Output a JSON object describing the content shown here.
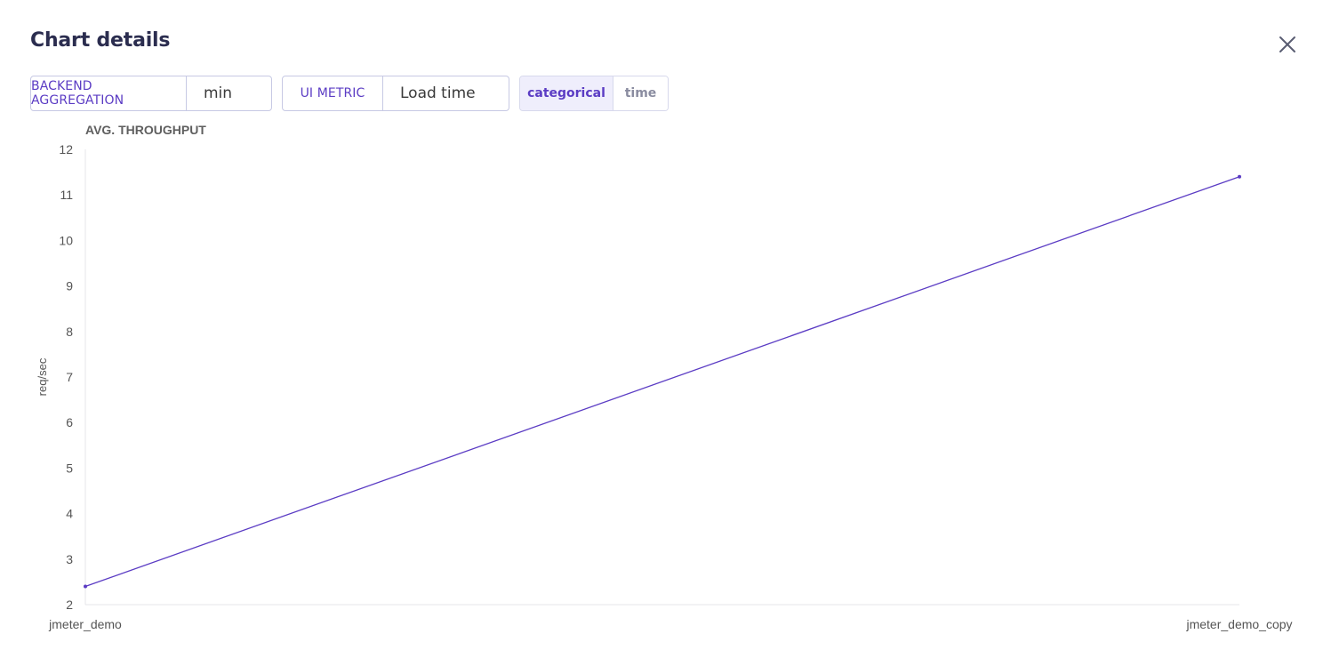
{
  "dialog": {
    "title": "Chart details"
  },
  "controls": {
    "backend_aggregation": {
      "label": "BACKEND AGGREGATION",
      "value": "min"
    },
    "ui_metric": {
      "label": "UI METRIC",
      "value": "Load time"
    },
    "mode_toggle": {
      "options": [
        "categorical",
        "time"
      ],
      "selected": "categorical"
    }
  },
  "icons": {
    "close": "close-icon"
  },
  "colors": {
    "accent": "#5b3cc4",
    "line": "#5b3cc4",
    "title": "#2b2d4f",
    "toggle_active_bg": "#efeefc"
  },
  "chart_data": {
    "type": "line",
    "title": "AVG. THROUGHPUT",
    "xlabel": "",
    "ylabel": "req/sec",
    "categories": [
      "jmeter_demo",
      "jmeter_demo_copy"
    ],
    "series": [
      {
        "values": [
          2.4,
          11.4
        ]
      }
    ],
    "ylim": [
      2,
      12
    ],
    "yticks": [
      2,
      3,
      4,
      5,
      6,
      7,
      8,
      9,
      10,
      11,
      12
    ],
    "grid": false,
    "legend": "none"
  }
}
